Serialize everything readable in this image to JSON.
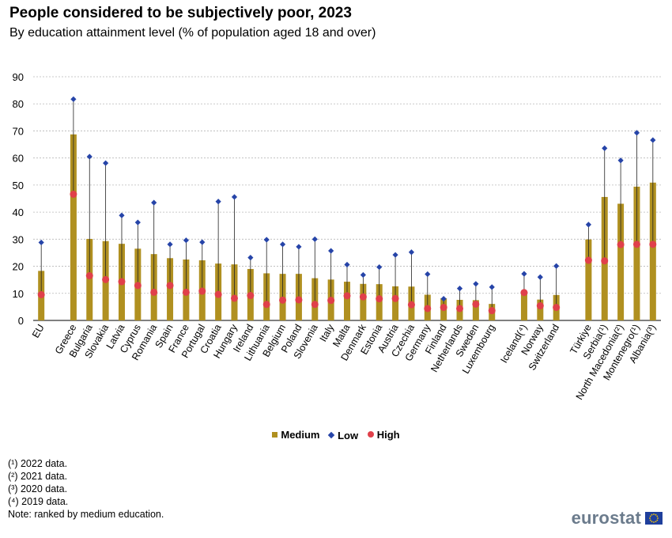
{
  "header": {
    "title": "People considered to be subjectively poor, 2023",
    "subtitle": "By education attainment level (% of population  aged 18 and over)"
  },
  "colors": {
    "medium": "#b09020",
    "low": "#2644a8",
    "high": "#e0404a",
    "grid": "#b8b8b8",
    "axis": "#000000"
  },
  "legend": {
    "medium": "Medium",
    "low": "Low",
    "high": "High"
  },
  "notes": [
    "(¹) 2022 data.",
    "(²) 2021 data.",
    "(³) 2020 data.",
    "(⁴) 2019 data.",
    "Note: ranked by medium education."
  ],
  "logo": {
    "text": "eurostat",
    "icon": "eu-flag-icon"
  },
  "chart_data": {
    "type": "bar",
    "title": "People considered to be subjectively poor, 2023",
    "subtitle": "By education attainment level (% of population  aged 18 and over)",
    "ylim": [
      0,
      90
    ],
    "yticks": [
      0,
      10,
      20,
      30,
      40,
      50,
      60,
      70,
      80,
      90
    ],
    "grid": true,
    "legend_position": "bottom",
    "categories": [
      "EU",
      "",
      "Greece",
      "Bulgaria",
      "Slovakia",
      "Latvia",
      "Cyprus",
      "Romania",
      "Spain",
      "France",
      "Portugal",
      "Croatia",
      "Hungary",
      "Ireland",
      "Lithuania",
      "Belgium",
      "Poland",
      "Slovenia",
      "Italy",
      "Malta",
      "Denmark",
      "Estonia",
      "Austria",
      "Czechia",
      "Germany",
      "Finland",
      "Netherlands",
      "Sweden",
      "Luxembourg",
      "",
      "Iceland(⁴)",
      "Norway",
      "Switzerland",
      "",
      "Türkiye",
      "Serbia(¹)",
      "North Macedonia(²)",
      "Montenegro(¹)",
      "Albania(³)"
    ],
    "series": [
      {
        "name": "Medium",
        "style": "bar",
        "values": [
          18.3,
          null,
          68.7,
          30.1,
          29.3,
          28.3,
          26.5,
          24.5,
          23.0,
          22.5,
          22.2,
          21.0,
          20.7,
          19.0,
          17.4,
          17.2,
          17.2,
          15.6,
          15.1,
          14.3,
          13.5,
          13.4,
          12.6,
          12.5,
          9.5,
          8.2,
          7.6,
          7.5,
          6.1,
          null,
          10.6,
          7.7,
          9.4,
          null,
          29.9,
          45.6,
          43.1,
          49.4,
          50.9
        ]
      },
      {
        "name": "Low",
        "style": "diamond",
        "values": [
          28.8,
          null,
          81.7,
          60.5,
          58.1,
          38.8,
          36.2,
          43.5,
          28.1,
          29.6,
          28.9,
          43.9,
          45.6,
          23.2,
          29.8,
          28.1,
          27.2,
          30.0,
          25.7,
          20.6,
          16.8,
          19.7,
          24.2,
          25.2,
          17.1,
          8.0,
          11.8,
          13.5,
          12.3,
          null,
          17.2,
          16.0,
          20.1,
          null,
          35.4,
          63.6,
          59.1,
          69.3,
          66.6
        ]
      },
      {
        "name": "High",
        "style": "dot",
        "values": [
          9.5,
          null,
          46.6,
          16.5,
          15.1,
          14.3,
          12.9,
          10.4,
          12.9,
          10.4,
          10.8,
          9.6,
          8.2,
          9.2,
          5.9,
          7.5,
          7.6,
          5.9,
          7.4,
          9.1,
          8.7,
          8.0,
          8.1,
          5.8,
          4.4,
          4.8,
          4.4,
          6.0,
          3.6,
          null,
          10.3,
          5.4,
          4.8,
          null,
          22.2,
          22.0,
          28.0,
          28.1,
          28.1
        ]
      }
    ]
  }
}
